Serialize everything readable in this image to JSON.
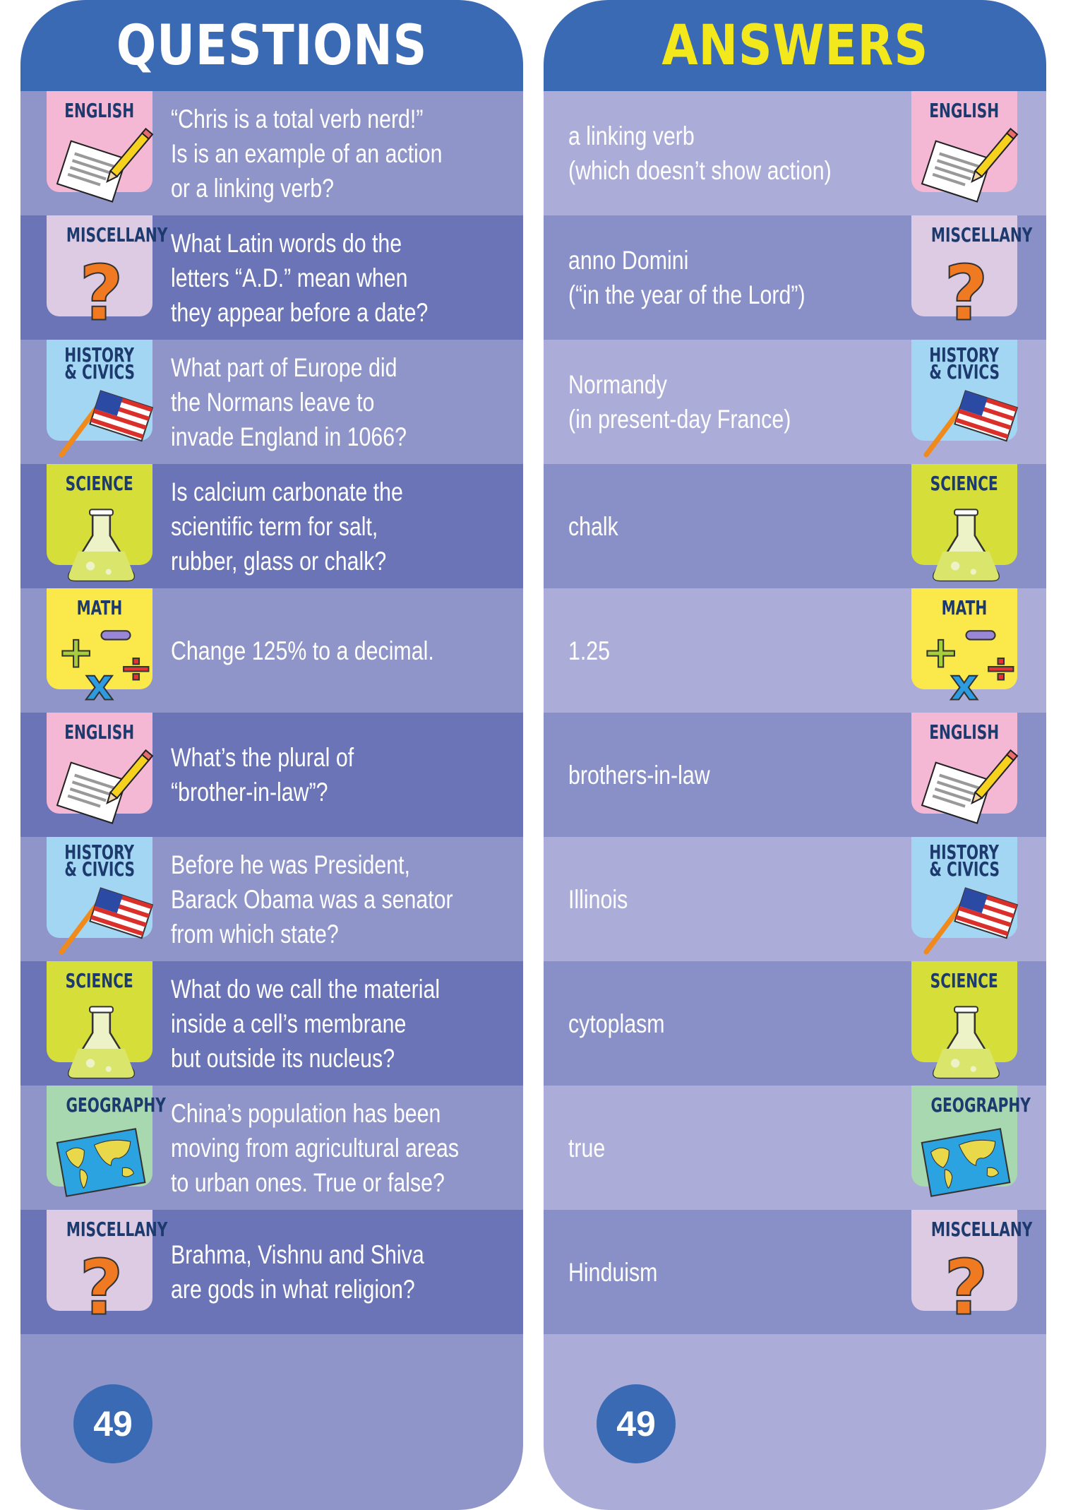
{
  "questions_header": "QUESTIONS",
  "answers_header": "ANSWERS",
  "page_number": "49",
  "colors": {
    "header": "#3a6ab4",
    "answers_title": "#f2e81c",
    "question_row_light": "#8f95c9",
    "question_row_dark": "#6a74b6",
    "answer_row_light": "#abadd8",
    "answer_row_dark": "#8990c7"
  },
  "categories": {
    "english": {
      "label": [
        "ENGLISH"
      ],
      "color": "#f5b8d4",
      "icon": "paper-pencil-icon"
    },
    "miscellany": {
      "label": [
        "MISCELLANY"
      ],
      "color": "#dccbe3",
      "icon": "question-mark-icon"
    },
    "history": {
      "label": [
        "HISTORY",
        "& CIVICS"
      ],
      "color": "#a3d6f2",
      "icon": "us-flag-icon"
    },
    "science": {
      "label": [
        "SCIENCE"
      ],
      "color": "#d6df3a",
      "icon": "flask-icon"
    },
    "math": {
      "label": [
        "MATH"
      ],
      "color": "#fbe84a",
      "icon": "math-symbols-icon"
    },
    "geography": {
      "label": [
        "GEOGRAPHY"
      ],
      "color": "#a8d8b0",
      "icon": "world-map-icon"
    }
  },
  "items": [
    {
      "category": "english",
      "question": [
        "“Chris is a total verb nerd!”",
        "Is is an example of an action",
        "or a linking verb?"
      ],
      "answer": [
        "a linking verb",
        "(which doesn’t show action)"
      ]
    },
    {
      "category": "miscellany",
      "question": [
        "What Latin words do the",
        "letters “A.D.” mean when",
        "they appear before a date?"
      ],
      "answer": [
        "anno Domini",
        "(“in the year of the Lord”)"
      ]
    },
    {
      "category": "history",
      "question": [
        "What part of Europe did",
        "the Normans leave to",
        "invade England in 1066?"
      ],
      "answer": [
        "Normandy",
        "(in present-day France)"
      ]
    },
    {
      "category": "science",
      "question": [
        "Is calcium carbonate the",
        "scientific term for salt,",
        "rubber, glass or chalk?"
      ],
      "answer": [
        "chalk"
      ]
    },
    {
      "category": "math",
      "question": [
        "Change 125% to a decimal."
      ],
      "answer": [
        "1.25"
      ]
    },
    {
      "category": "english",
      "question": [
        "What’s the plural of",
        "“brother-in-law”?"
      ],
      "answer": [
        "brothers-in-law"
      ]
    },
    {
      "category": "history",
      "question": [
        "Before he was President,",
        "Barack Obama was a senator",
        "from which state?"
      ],
      "answer": [
        "Illinois"
      ]
    },
    {
      "category": "science",
      "question": [
        "What do we call the material",
        "inside a cell’s membrane",
        "but outside its nucleus?"
      ],
      "answer": [
        "cytoplasm"
      ]
    },
    {
      "category": "geography",
      "question": [
        "China’s population has been",
        "moving from agricultural areas",
        "to urban ones. True or false?"
      ],
      "answer": [
        "true"
      ]
    },
    {
      "category": "miscellany",
      "question": [
        "Brahma, Vishnu and Shiva",
        "are gods in what religion?"
      ],
      "answer": [
        "Hinduism"
      ]
    }
  ]
}
